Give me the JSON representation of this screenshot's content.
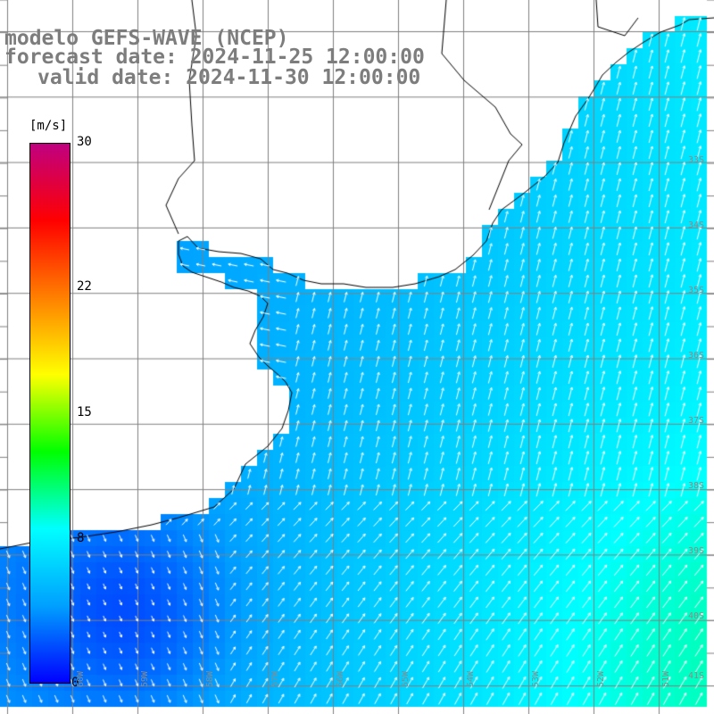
{
  "title": {
    "model": "modelo GEFS-WAVE (NCEP)",
    "forecast": "forecast date: 2024-11-25 12:00:00",
    "valid": "valid date: 2024-11-30 12:00:00"
  },
  "colorbar": {
    "unit": "[m/s]",
    "min": 0,
    "max": 30,
    "ticks": [
      {
        "value": 30,
        "label": "30"
      },
      {
        "value": 22,
        "label": "22"
      },
      {
        "value": 15,
        "label": "15"
      },
      {
        "value": 8,
        "label": "8"
      },
      {
        "value": 0,
        "label": "0"
      }
    ],
    "stops": [
      "#0000ff",
      "#00a0ff",
      "#00ffff",
      "#00ff00",
      "#ffff00",
      "#ff8000",
      "#ff0000",
      "#c00080"
    ]
  },
  "lat_labels": [
    "33S",
    "34S",
    "35S",
    "36S",
    "37S",
    "38S",
    "39S",
    "40S",
    "41S"
  ],
  "lon_labels": [
    "60W",
    "59W",
    "58W",
    "57W",
    "56W",
    "55W",
    "54W",
    "53W",
    "52W",
    "51W"
  ],
  "colors": {
    "land": "#ffffff",
    "grid": "#808080",
    "coast": "#000000",
    "arrow": "#ffffff",
    "title": "#7d7d7d"
  }
}
